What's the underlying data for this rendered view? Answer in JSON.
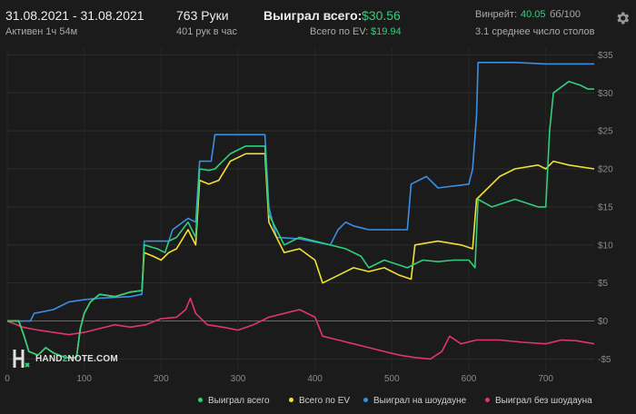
{
  "header": {
    "date_range": "31.08.2021 - 31.08.2021",
    "active": "Активен 1ч 54м",
    "hands": "763 Руки",
    "hands_per_hour": "401 рук в час",
    "won_label": "Выиграл всего:",
    "won_value": "$30.56",
    "ev_label": "Всего по EV:",
    "ev_value": "$19.94",
    "winrate_label": "Винрейт:",
    "winrate_value": "40.05",
    "winrate_unit": "бб/100",
    "tables": "3.1 среднее число столов"
  },
  "logo": {
    "part1": "HAND",
    "part2": "2",
    "part3": "NOTE.COM"
  },
  "icons": {
    "settings": "gear-icon"
  },
  "chart_data": {
    "type": "line",
    "xlabel": "",
    "ylabel": "",
    "xlim": [
      0,
      763
    ],
    "ylim": [
      -6.5,
      36
    ],
    "x_ticks": [
      0,
      100,
      200,
      300,
      400,
      500,
      600,
      700
    ],
    "y_ticks": [
      35,
      30,
      25,
      20,
      15,
      10,
      5,
      0,
      -5
    ],
    "y_tick_labels": [
      "$35",
      "$30",
      "$25",
      "$20",
      "$15",
      "$10",
      "$5",
      "$0",
      "-$5"
    ],
    "grid": true,
    "legend_position": "bottom",
    "series": [
      {
        "name": "Выиграл всего",
        "color": "#2fcf7c",
        "points": [
          [
            0,
            0
          ],
          [
            15,
            0
          ],
          [
            22,
            -2
          ],
          [
            28,
            -4
          ],
          [
            40,
            -4.5
          ],
          [
            50,
            -3.5
          ],
          [
            60,
            -4.2
          ],
          [
            75,
            -4.8
          ],
          [
            90,
            -4.8
          ],
          [
            95,
            -1
          ],
          [
            100,
            1
          ],
          [
            108,
            2.5
          ],
          [
            120,
            3.5
          ],
          [
            140,
            3.2
          ],
          [
            160,
            3.8
          ],
          [
            175,
            4
          ],
          [
            178,
            10
          ],
          [
            195,
            9.5
          ],
          [
            205,
            9
          ],
          [
            210,
            10.5
          ],
          [
            220,
            11
          ],
          [
            235,
            13
          ],
          [
            240,
            12
          ],
          [
            245,
            11
          ],
          [
            250,
            20
          ],
          [
            262,
            19.8
          ],
          [
            270,
            20
          ],
          [
            290,
            22
          ],
          [
            310,
            23
          ],
          [
            335,
            23
          ],
          [
            340,
            14
          ],
          [
            360,
            10
          ],
          [
            380,
            11
          ],
          [
            400,
            10.5
          ],
          [
            420,
            10
          ],
          [
            440,
            9.5
          ],
          [
            460,
            8.5
          ],
          [
            470,
            7
          ],
          [
            490,
            8
          ],
          [
            520,
            7
          ],
          [
            540,
            8
          ],
          [
            560,
            7.8
          ],
          [
            580,
            8
          ],
          [
            600,
            8
          ],
          [
            608,
            7
          ],
          [
            612,
            16
          ],
          [
            630,
            15
          ],
          [
            660,
            16
          ],
          [
            690,
            15
          ],
          [
            700,
            15
          ],
          [
            705,
            25
          ],
          [
            710,
            30
          ],
          [
            730,
            31.5
          ],
          [
            745,
            31
          ],
          [
            755,
            30.5
          ],
          [
            763,
            30.5
          ]
        ]
      },
      {
        "name": "Всего по EV",
        "color": "#f2e135",
        "points": [
          [
            0,
            0
          ],
          [
            15,
            0
          ],
          [
            22,
            -2
          ],
          [
            28,
            -4
          ],
          [
            40,
            -4.5
          ],
          [
            50,
            -3.5
          ],
          [
            60,
            -4.2
          ],
          [
            75,
            -4.8
          ],
          [
            90,
            -4.8
          ],
          [
            95,
            -1
          ],
          [
            100,
            1
          ],
          [
            108,
            2.5
          ],
          [
            120,
            3.5
          ],
          [
            140,
            3.2
          ],
          [
            160,
            3.8
          ],
          [
            175,
            4
          ],
          [
            178,
            9
          ],
          [
            190,
            8.5
          ],
          [
            200,
            8
          ],
          [
            210,
            9
          ],
          [
            220,
            9.5
          ],
          [
            235,
            12
          ],
          [
            245,
            10
          ],
          [
            250,
            18.5
          ],
          [
            262,
            18
          ],
          [
            275,
            18.5
          ],
          [
            290,
            21
          ],
          [
            310,
            22
          ],
          [
            335,
            22
          ],
          [
            340,
            13
          ],
          [
            360,
            9
          ],
          [
            380,
            9.5
          ],
          [
            400,
            8
          ],
          [
            410,
            5
          ],
          [
            430,
            6
          ],
          [
            450,
            7
          ],
          [
            470,
            6.5
          ],
          [
            490,
            7
          ],
          [
            510,
            6
          ],
          [
            525,
            5.5
          ],
          [
            530,
            10
          ],
          [
            560,
            10.5
          ],
          [
            590,
            10
          ],
          [
            605,
            9.5
          ],
          [
            610,
            16
          ],
          [
            640,
            19
          ],
          [
            660,
            20
          ],
          [
            690,
            20.5
          ],
          [
            700,
            20
          ],
          [
            710,
            21
          ],
          [
            730,
            20.5
          ],
          [
            763,
            20
          ]
        ]
      },
      {
        "name": "Выиграл на шоудауне",
        "color": "#3b8fe3",
        "points": [
          [
            0,
            0
          ],
          [
            30,
            0
          ],
          [
            35,
            1
          ],
          [
            60,
            1.5
          ],
          [
            80,
            2.5
          ],
          [
            100,
            2.8
          ],
          [
            120,
            3
          ],
          [
            160,
            3.2
          ],
          [
            175,
            3.5
          ],
          [
            178,
            10.5
          ],
          [
            210,
            10.5
          ],
          [
            215,
            12
          ],
          [
            235,
            13.5
          ],
          [
            245,
            13
          ],
          [
            250,
            21
          ],
          [
            265,
            21
          ],
          [
            270,
            24.5
          ],
          [
            300,
            24.5
          ],
          [
            335,
            24.5
          ],
          [
            340,
            15
          ],
          [
            350,
            11
          ],
          [
            380,
            10.8
          ],
          [
            420,
            10
          ],
          [
            430,
            12
          ],
          [
            440,
            13
          ],
          [
            450,
            12.5
          ],
          [
            470,
            12
          ],
          [
            520,
            12
          ],
          [
            525,
            18
          ],
          [
            545,
            19
          ],
          [
            560,
            17.5
          ],
          [
            600,
            18
          ],
          [
            605,
            20
          ],
          [
            610,
            27
          ],
          [
            612,
            34
          ],
          [
            660,
            34
          ],
          [
            700,
            33.8
          ],
          [
            763,
            33.8
          ]
        ]
      },
      {
        "name": "Выиграл без шоудауна",
        "color": "#e03476",
        "points": [
          [
            0,
            0
          ],
          [
            20,
            -0.8
          ],
          [
            40,
            -1.2
          ],
          [
            60,
            -1.5
          ],
          [
            80,
            -1.8
          ],
          [
            100,
            -1.5
          ],
          [
            120,
            -1
          ],
          [
            140,
            -0.5
          ],
          [
            160,
            -0.8
          ],
          [
            180,
            -0.5
          ],
          [
            200,
            0.3
          ],
          [
            220,
            0.5
          ],
          [
            232,
            1.5
          ],
          [
            238,
            3
          ],
          [
            245,
            1
          ],
          [
            260,
            -0.5
          ],
          [
            280,
            -0.8
          ],
          [
            300,
            -1.2
          ],
          [
            320,
            -0.5
          ],
          [
            340,
            0.5
          ],
          [
            360,
            1
          ],
          [
            380,
            1.5
          ],
          [
            400,
            0.5
          ],
          [
            410,
            -2
          ],
          [
            430,
            -2.5
          ],
          [
            450,
            -3
          ],
          [
            470,
            -3.5
          ],
          [
            490,
            -4
          ],
          [
            510,
            -4.5
          ],
          [
            530,
            -4.8
          ],
          [
            550,
            -5
          ],
          [
            565,
            -4
          ],
          [
            575,
            -2
          ],
          [
            590,
            -3
          ],
          [
            610,
            -2.5
          ],
          [
            640,
            -2.5
          ],
          [
            670,
            -2.8
          ],
          [
            700,
            -3
          ],
          [
            720,
            -2.5
          ],
          [
            740,
            -2.6
          ],
          [
            763,
            -3
          ]
        ]
      }
    ]
  }
}
